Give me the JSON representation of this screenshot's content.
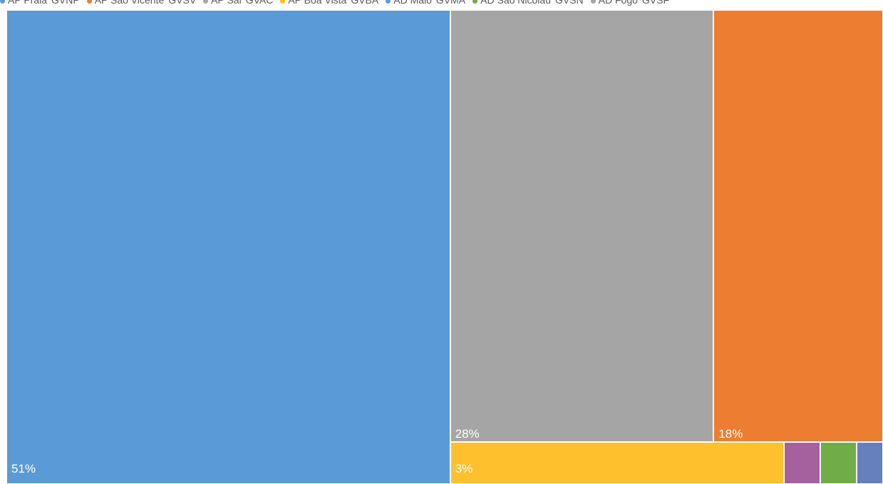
{
  "chart_data": {
    "type": "treemap",
    "legend": {
      "position": "top",
      "entries": [
        {
          "name": "AP Praia",
          "code": "GVNP",
          "color": "#5B9BD5"
        },
        {
          "name": "AP São Vicente",
          "code": "GVSV",
          "color": "#ED7D31"
        },
        {
          "name": "AP Sal",
          "code": "GVAC",
          "color": "#A5A5A5"
        },
        {
          "name": "AP Boa Vista",
          "code": "GVBA",
          "color": "#FFC000"
        },
        {
          "name": "AD Maio",
          "code": "GVMA",
          "color": "#5B9BD5"
        },
        {
          "name": "AD São Nicolau",
          "code": "GVSN",
          "color": "#70AD47"
        },
        {
          "name": "AD Fogo",
          "code": "GVSF",
          "color": "#A5A5A5"
        }
      ]
    },
    "tiles": [
      {
        "name": "AP Praia",
        "value": 51,
        "label": "51%",
        "color": "#5B9BD5"
      },
      {
        "name": "AP Sal",
        "value": 28,
        "label": "28%",
        "color": "#A5A5A5"
      },
      {
        "name": "AP São Vicente",
        "value": 18,
        "label": "18%",
        "color": "#ED7D31"
      },
      {
        "name": "AP Boa Vista",
        "value": 3,
        "label": "3%",
        "color": "#FFC02E"
      },
      {
        "name": "AD Maio",
        "value": 0.3,
        "label": "",
        "color": "#A5619E"
      },
      {
        "name": "AD São Nicolau",
        "value": 0.3,
        "label": "",
        "color": "#70AD47"
      },
      {
        "name": "AD Fogo",
        "value": 0.15,
        "label": "",
        "color": "#6680BD"
      }
    ]
  }
}
